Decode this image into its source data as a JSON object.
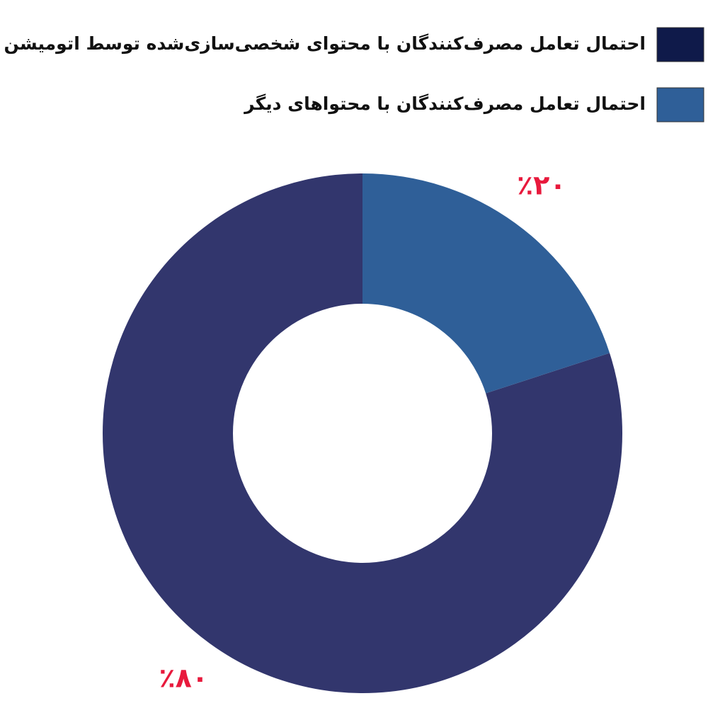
{
  "chart_data": {
    "type": "donut",
    "categories": [
      "احتمال تعامل مصرف‌کنندگان با محتوای شخصی‌سازی‌شده توسط اتومیشن",
      "احتمال تعامل مصرف‌کنندگان با محتواهای دیگر"
    ],
    "values": [
      80,
      20
    ],
    "value_labels": [
      "٪۸۰",
      "٪۲۰"
    ],
    "colors": [
      "#32366d",
      "#2f5f98"
    ],
    "legend_colors": [
      "#0f1a4a",
      "#2f5f98"
    ],
    "legend": "top-right"
  }
}
